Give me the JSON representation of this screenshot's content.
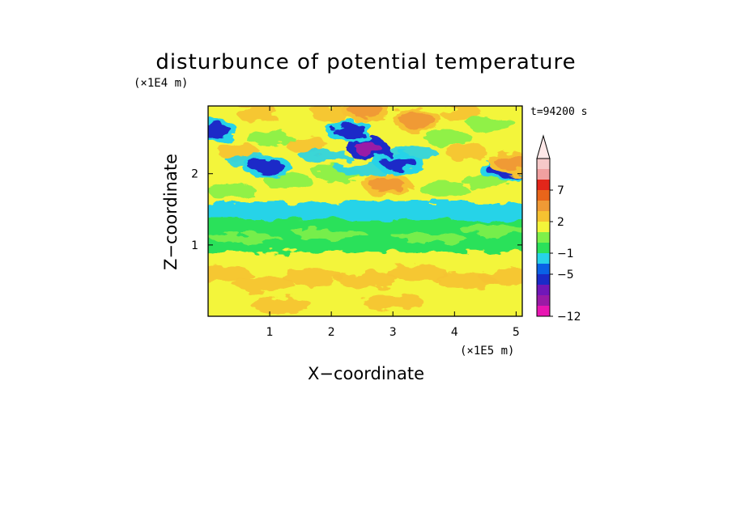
{
  "chart_data": {
    "type": "heatmap",
    "title": "disturbunce of potential temperature",
    "xlabel": "X−coordinate",
    "ylabel": "Z−coordinate",
    "x_unit_label": "(×1E5 m)",
    "y_unit_label": "(×1E4 m)",
    "time_label": "t=94200 s",
    "xlim": [
      0,
      5.1
    ],
    "ylim": [
      0,
      2.95
    ],
    "x_ticks": [
      1,
      2,
      3,
      4,
      5
    ],
    "y_ticks": [
      1,
      2
    ],
    "x_tick_labels": [
      "1",
      "2",
      "3",
      "4",
      "5"
    ],
    "y_tick_labels": [
      "1",
      "2"
    ],
    "grid": false,
    "colorbar": {
      "tick_labels": [
        "7",
        "2",
        "−1",
        "−5",
        "−12"
      ],
      "tick_levels": [
        7,
        2,
        -1,
        -5,
        -12
      ],
      "has_upper_extension": true,
      "colors_bottom_to_top": [
        "#e815b2",
        "#9a1aa6",
        "#7017b8",
        "#1a2bc8",
        "#0a62e6",
        "#27d3e8",
        "#2be15a",
        "#7ef04a",
        "#f3f53a",
        "#f6c231",
        "#f09a35",
        "#e8651a",
        "#e3261a",
        "#f0a0a0",
        "#f6c8c8"
      ],
      "extension_color": "#ffe8e8"
    },
    "field_bands": [
      {
        "z_range": [
          0.0,
          0.9
        ],
        "x_range": [
          0,
          5.1
        ],
        "dominant_level": "1 to 2",
        "description": "yellow/orange lower layer"
      },
      {
        "z_range": [
          0.9,
          1.35
        ],
        "x_range": [
          0,
          5.1
        ],
        "dominant_level": "-1 to 0",
        "description": "green middle layer"
      },
      {
        "z_range": [
          1.35,
          1.6
        ],
        "x_range": [
          0,
          5.1
        ],
        "dominant_level": "-1",
        "description": "cyan band"
      },
      {
        "z_range": [
          1.6,
          2.95
        ],
        "x_range": [
          0,
          5.1
        ],
        "dominant_level": "mixed -5 to 4",
        "description": "wavy upper layer with cold anomalies"
      }
    ],
    "anomalies": [
      {
        "x": 2.6,
        "z": 2.35,
        "level": -9
      },
      {
        "x": 2.3,
        "z": 2.6,
        "level": -5
      },
      {
        "x": 3.1,
        "z": 2.15,
        "level": -5
      },
      {
        "x": 0.1,
        "z": 2.6,
        "level": -5
      },
      {
        "x": 0.95,
        "z": 2.1,
        "level": -5
      },
      {
        "x": 4.8,
        "z": 2.05,
        "level": -5
      },
      {
        "x": 2.9,
        "z": 1.85,
        "level": 4
      },
      {
        "x": 2.55,
        "z": 2.9,
        "level": 4
      },
      {
        "x": 3.4,
        "z": 2.75,
        "level": 4
      },
      {
        "x": 4.95,
        "z": 2.15,
        "level": 4
      }
    ]
  }
}
